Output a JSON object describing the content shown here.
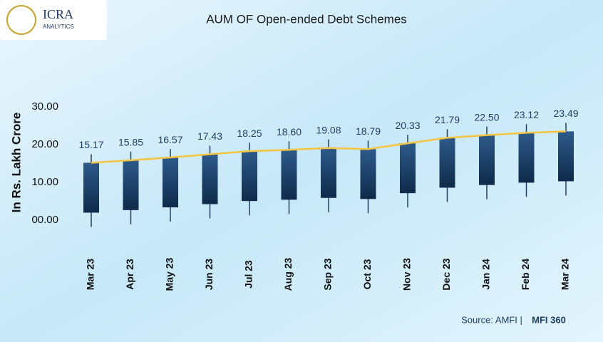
{
  "logo": {
    "name": "ICRA",
    "subtitle": "ANALYTICS"
  },
  "chart_data": {
    "type": "candlestick",
    "title": "AUM OF Open-ended Debt Schemes",
    "y_label": "In Rs. Lakh Crore",
    "categories": [
      "Mar 23",
      "Apr 23",
      "May 23",
      "Jun 23",
      "Jul 23",
      "Aug 23",
      "Sep 23",
      "Oct 23",
      "Nov 23",
      "Dec 23",
      "Jan 24",
      "Feb 24",
      "Mar 24"
    ],
    "values": [
      15.17,
      15.85,
      16.57,
      17.43,
      18.25,
      18.6,
      19.08,
      18.79,
      20.33,
      21.79,
      22.5,
      23.12,
      23.49
    ],
    "value_labels": [
      "15.17",
      "15.85",
      "16.57",
      "17.43",
      "18.25",
      "18.60",
      "19.08",
      "18.79",
      "20.33",
      "21.79",
      "22.50",
      "23.12",
      "23.49"
    ],
    "ylim": [
      -4,
      50
    ],
    "yticks": [
      {
        "value": 0,
        "label": "00.00"
      },
      {
        "value": 10,
        "label": "10.00"
      },
      {
        "value": 20,
        "label": "20.00"
      },
      {
        "value": 30,
        "label": "30.00"
      }
    ],
    "color": "#1f3f66",
    "line_color": "#f5c542"
  },
  "source": {
    "text": "Source: AMFI |",
    "brand": "MFI 360"
  }
}
